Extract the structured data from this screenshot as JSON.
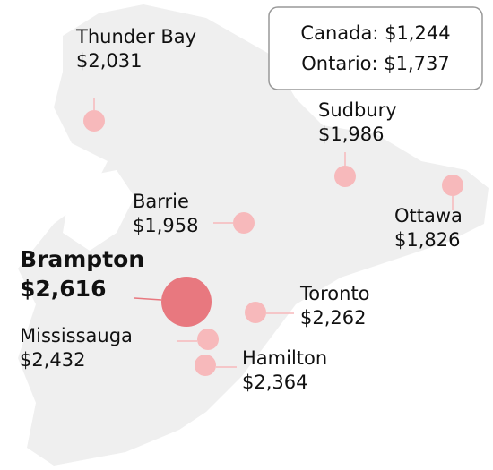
{
  "summary": [
    "Canada: $1,244",
    "Ontario: $1,737"
  ],
  "cities": [
    {
      "name": "Thunder Bay",
      "value": 2031,
      "value_label": "$2,031"
    },
    {
      "name": "Sudbury",
      "value": 1986,
      "value_label": "$1,986"
    },
    {
      "name": "Ottawa",
      "value": 1826,
      "value_label": "$1,826"
    },
    {
      "name": "Barrie",
      "value": 1958,
      "value_label": "$1,958"
    },
    {
      "name": "Brampton",
      "value": 2616,
      "value_label": "$2,616"
    },
    {
      "name": "Toronto",
      "value": 2262,
      "value_label": "$2,262"
    },
    {
      "name": "Mississauga",
      "value": 2432,
      "value_label": "$2,432"
    },
    {
      "name": "Hamilton",
      "value": 2364,
      "value_label": "$2,364"
    }
  ]
}
